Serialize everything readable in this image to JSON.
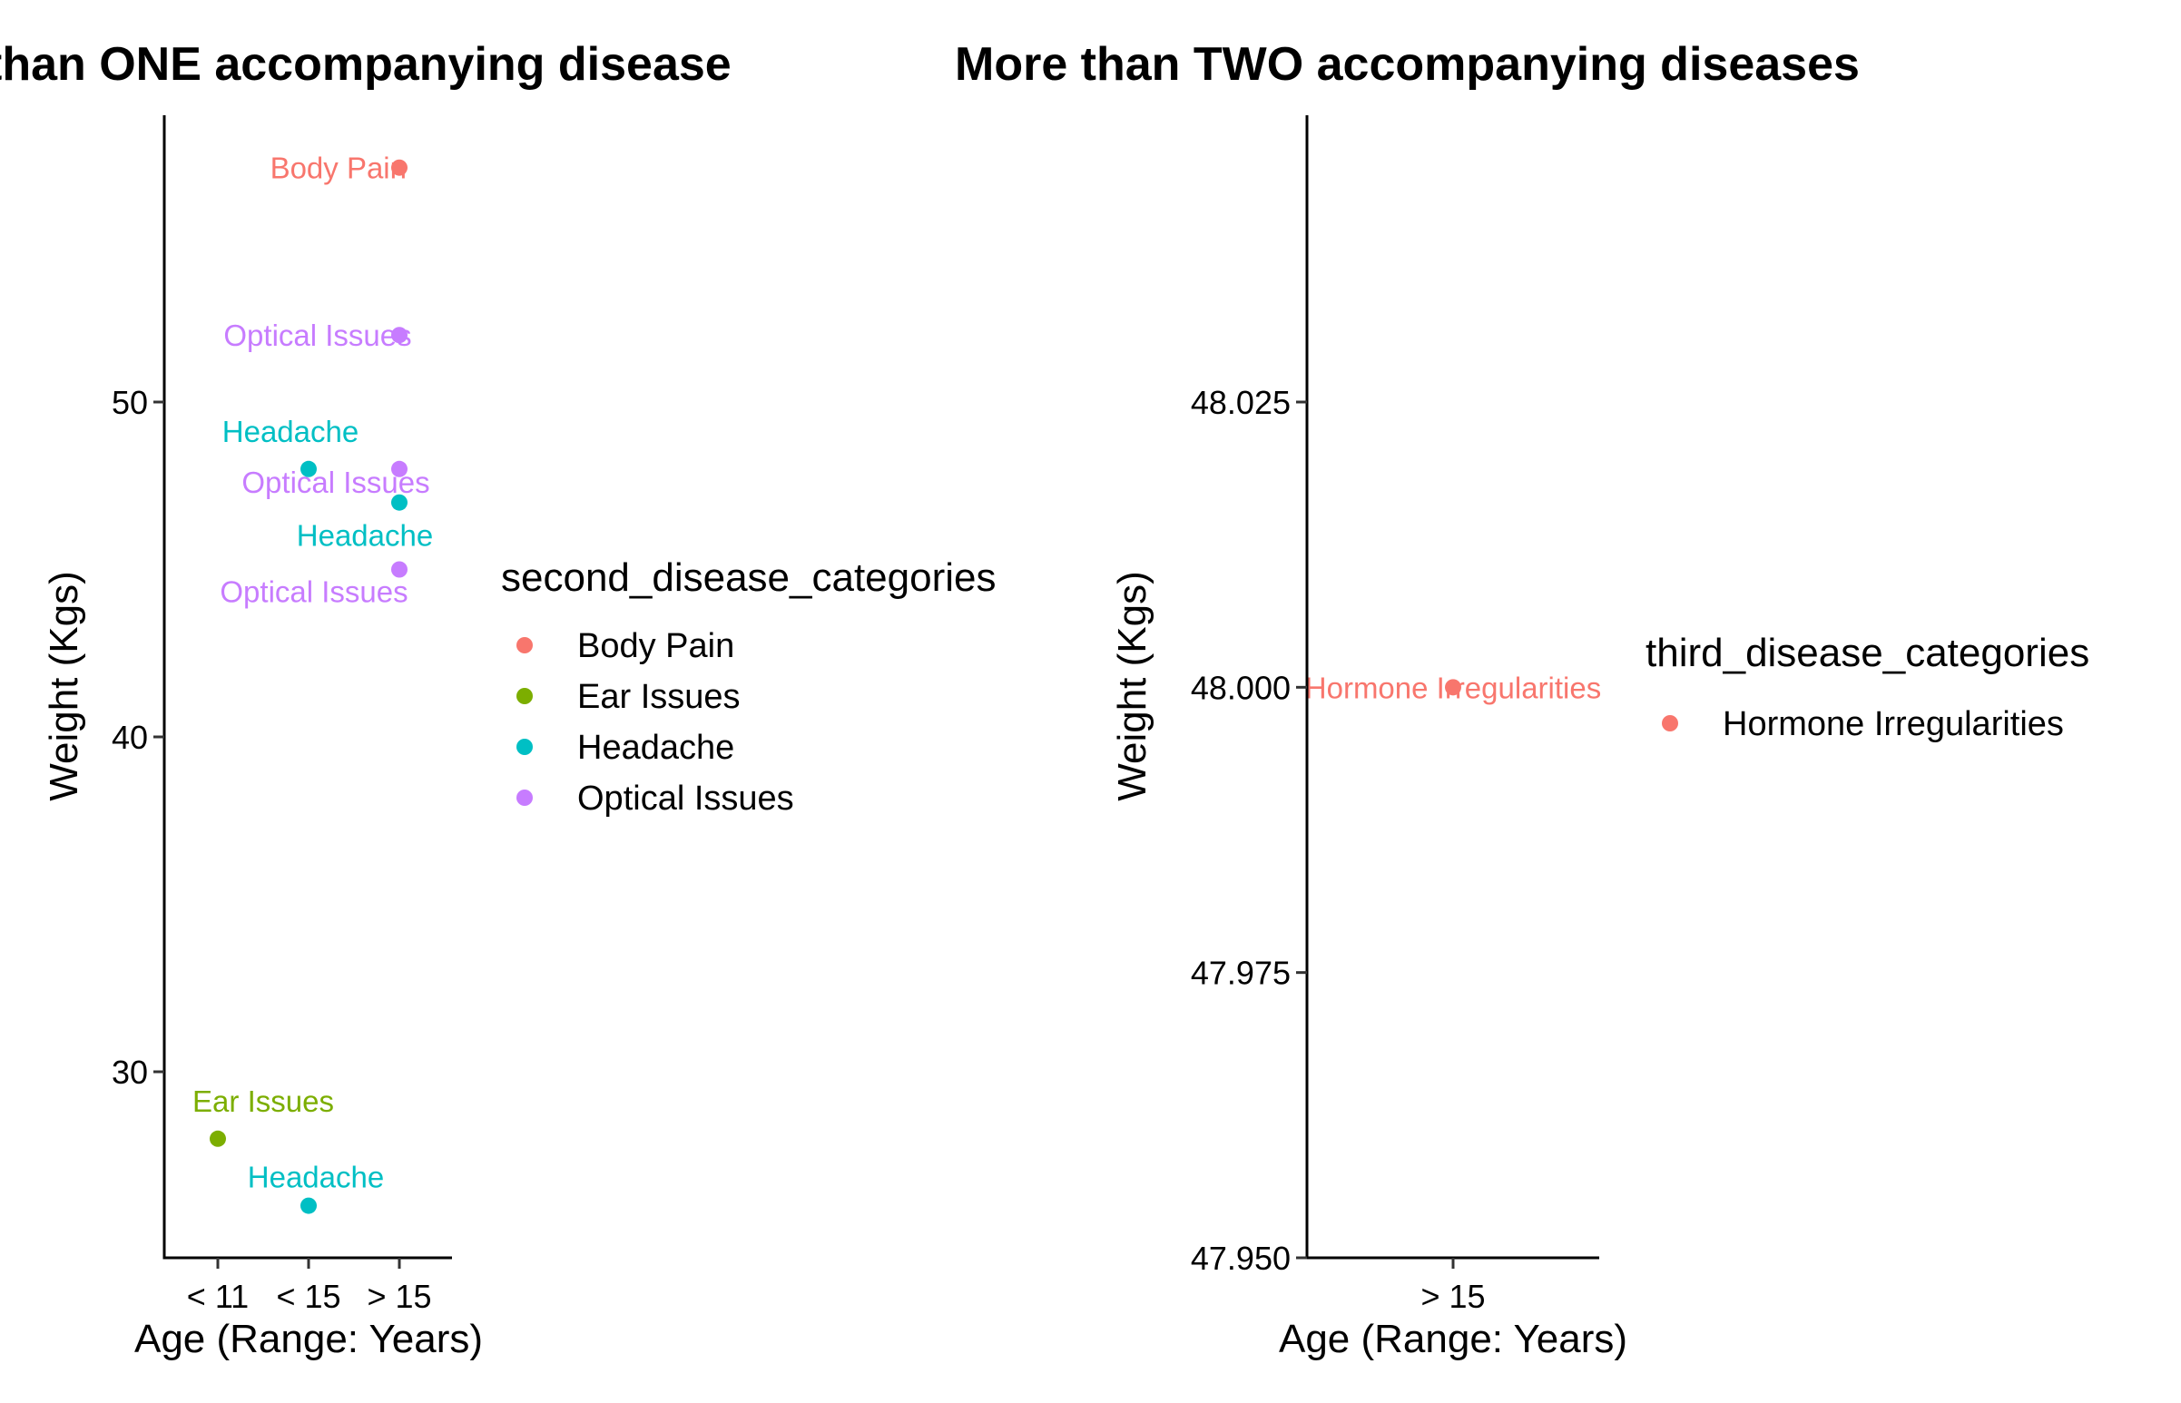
{
  "chart_data": [
    {
      "type": "scatter",
      "title": "than ONE accompanying disease",
      "xlabel": "Age (Range: Years)",
      "ylabel": "Weight (Kgs)",
      "categories": [
        "< 11",
        "< 15",
        "> 15"
      ],
      "ylim": [
        24.5,
        58
      ],
      "yticks": [
        30,
        40,
        50
      ],
      "legend_title": "second_disease_categories",
      "legend": [
        {
          "name": "Body Pain",
          "color": "#F8766D"
        },
        {
          "name": "Ear Issues",
          "color": "#7CAE00"
        },
        {
          "name": "Headache",
          "color": "#00BFC4"
        },
        {
          "name": "Optical Issues",
          "color": "#C77CFF"
        }
      ],
      "points": [
        {
          "x": "> 15",
          "y": 57,
          "category": "Body Pain",
          "label": "Body Pain",
          "label_anchor": "end"
        },
        {
          "x": "> 15",
          "y": 52,
          "category": "Optical Issues",
          "label": "Optical Issues",
          "label_anchor": "middle-left"
        },
        {
          "x": "< 15",
          "y": 48,
          "category": "Headache",
          "label": "Headache",
          "label_anchor": "above-left"
        },
        {
          "x": "> 15",
          "y": 48,
          "category": "Optical Issues",
          "label": "Optical Issues",
          "label_anchor": "below-left"
        },
        {
          "x": "> 15",
          "y": 47,
          "category": "Headache",
          "label": "Headache",
          "label_anchor": "below-left2"
        },
        {
          "x": "> 15",
          "y": 45,
          "category": "Optical Issues",
          "label": "Optical Issues",
          "label_anchor": "below-left3"
        },
        {
          "x": "< 11",
          "y": 28,
          "category": "Ear Issues",
          "label": "Ear Issues",
          "label_anchor": "above-right"
        },
        {
          "x": "< 15",
          "y": 26,
          "category": "Headache",
          "label": "Headache",
          "label_anchor": "above"
        }
      ]
    },
    {
      "type": "scatter",
      "title": "More than TWO accompanying diseases",
      "xlabel": "Age (Range: Years)",
      "ylabel": "Weight (Kgs)",
      "categories": [
        "> 15"
      ],
      "ylim": [
        47.95,
        48.05
      ],
      "yticks": [
        "47.950",
        "47.975",
        "48.000",
        "48.025"
      ],
      "legend_title": "third_disease_categories",
      "legend": [
        {
          "name": "Hormone Irregularities",
          "color": "#F8766D"
        }
      ],
      "points": [
        {
          "x": "> 15",
          "y": 48.0,
          "category": "Hormone Irregularities",
          "label": "Hormone Irregularities",
          "label_anchor": "center"
        }
      ]
    }
  ]
}
